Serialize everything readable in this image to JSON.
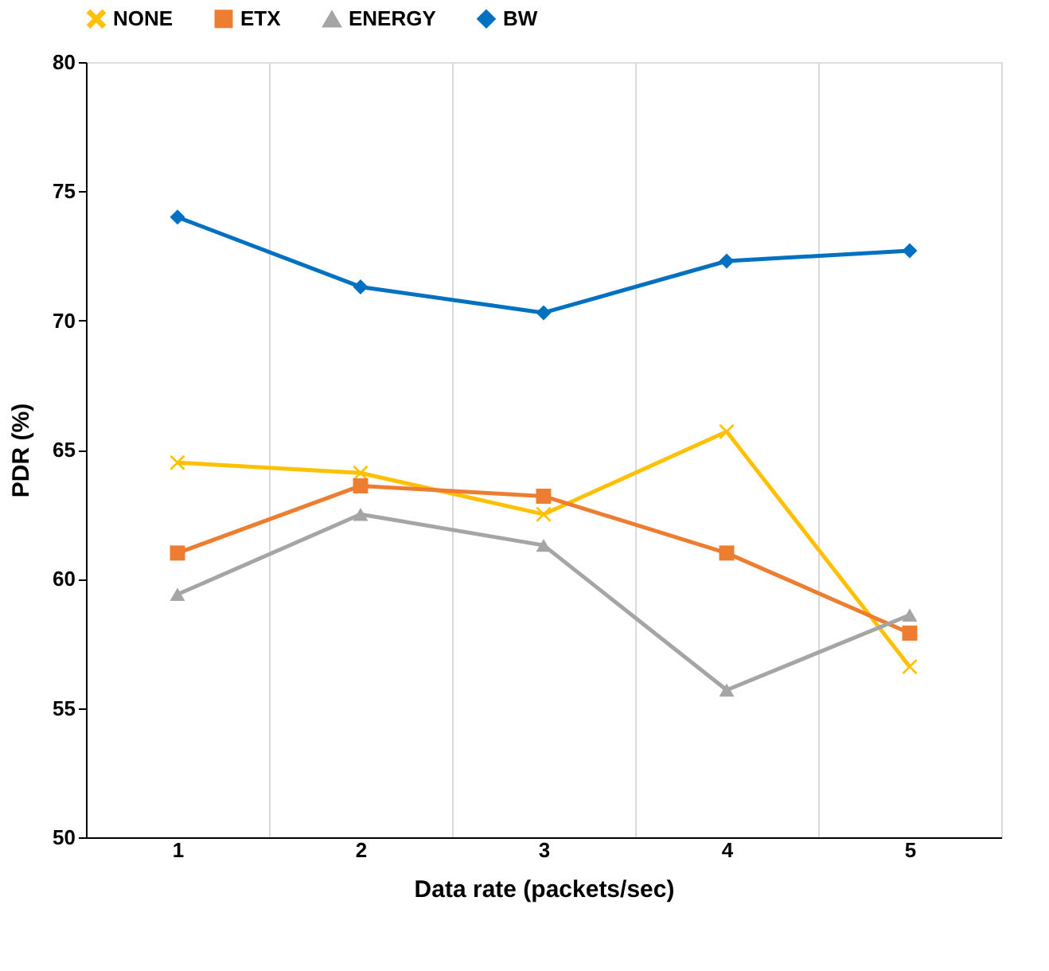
{
  "chart_data": {
    "type": "line",
    "xlabel": "Data rate (packets/sec)",
    "ylabel": "PDR (%)",
    "categories": [
      "1",
      "2",
      "3",
      "4",
      "5"
    ],
    "series": [
      {
        "name": "NONE",
        "color": "#ffc000",
        "marker": "cross",
        "values": [
          64.5,
          64.1,
          62.5,
          65.7,
          56.6
        ]
      },
      {
        "name": "ETX",
        "color": "#ed7d31",
        "marker": "square",
        "values": [
          61.0,
          63.6,
          63.2,
          61.0,
          57.9
        ]
      },
      {
        "name": "ENERGY",
        "color": "#a5a5a5",
        "marker": "triangle",
        "values": [
          59.4,
          62.5,
          61.3,
          55.7,
          58.6
        ]
      },
      {
        "name": "BW",
        "color": "#0070c0",
        "marker": "diamond",
        "values": [
          74.0,
          71.3,
          70.3,
          72.3,
          72.7
        ]
      }
    ],
    "ylim": [
      50,
      80
    ],
    "yticks": [
      50,
      55,
      60,
      65,
      70,
      75,
      80
    ],
    "grid": "x",
    "legend": "top",
    "line_style": "solid"
  }
}
